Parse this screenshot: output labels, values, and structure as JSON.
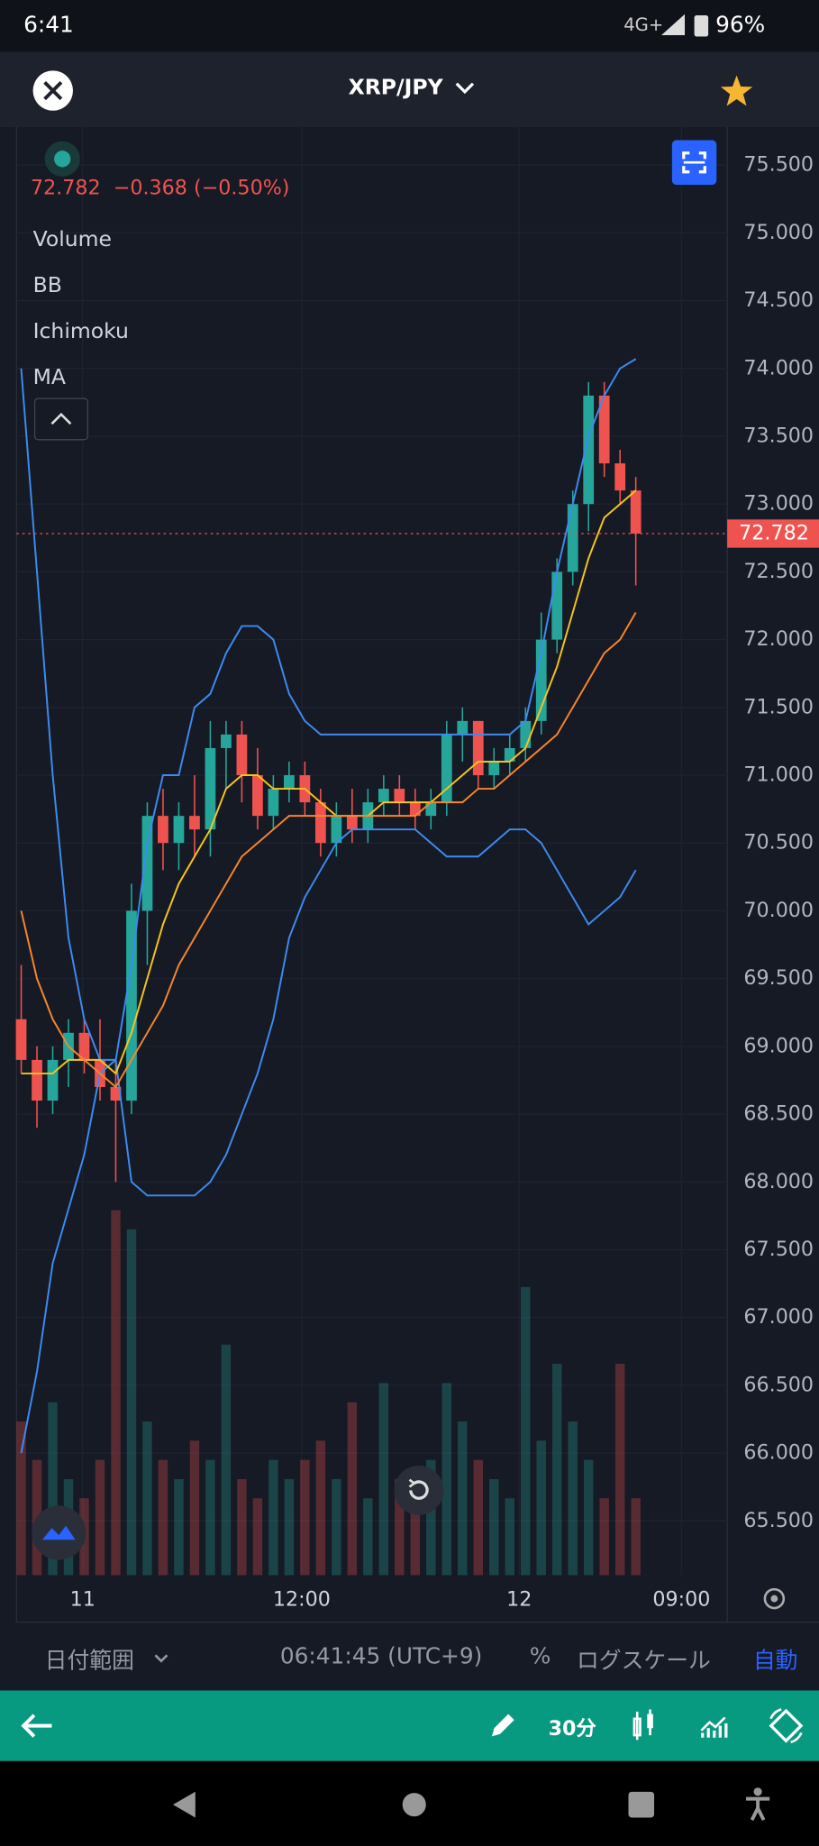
{
  "status_bar": {
    "time": "6:41",
    "network": "4G+",
    "battery": "96%"
  },
  "header": {
    "symbol": "XRP/JPY"
  },
  "chart_data": {
    "type": "candlestick",
    "change": "−0.368 (−0.50%)",
    "indicators": [
      "Volume",
      "BB",
      "Ichimoku",
      "MA"
    ],
    "up_color": "#26a69a",
    "down_color": "#ef5350",
    "categories": [
      null,
      null,
      null,
      null,
      null,
      null,
      null,
      null,
      null,
      null,
      null,
      null,
      null,
      null,
      null,
      null,
      null,
      null,
      null,
      null,
      null,
      null,
      null,
      null,
      null,
      null,
      null,
      null,
      null,
      null,
      null,
      null,
      null,
      null,
      null,
      null,
      null,
      null,
      null,
      null
    ],
    "open": [
      69.2,
      68.9,
      68.6,
      68.9,
      69.1,
      68.9,
      68.7,
      68.6,
      70.0,
      70.7,
      70.5,
      70.7,
      70.6,
      71.2,
      71.3,
      71.0,
      70.7,
      70.9,
      71.0,
      70.8,
      70.5,
      70.7,
      70.6,
      70.8,
      70.9,
      70.8,
      70.7,
      70.8,
      71.3,
      71.4,
      71.0,
      71.1,
      71.2,
      71.4,
      72.0,
      72.5,
      73.0,
      73.8,
      73.3,
      73.1
    ],
    "high": [
      69.6,
      69.0,
      69.0,
      69.2,
      69.2,
      69.2,
      68.9,
      70.2,
      70.8,
      70.9,
      70.8,
      71.0,
      71.4,
      71.4,
      71.4,
      71.2,
      71.0,
      71.1,
      71.1,
      70.9,
      70.8,
      70.9,
      70.9,
      71.0,
      71.0,
      70.9,
      70.9,
      71.4,
      71.5,
      71.4,
      71.2,
      71.3,
      71.5,
      72.2,
      72.6,
      73.1,
      73.9,
      73.9,
      73.4,
      73.2
    ],
    "low": [
      68.8,
      68.4,
      68.5,
      68.7,
      68.8,
      68.6,
      68.0,
      68.5,
      69.6,
      70.3,
      70.3,
      70.4,
      70.4,
      70.9,
      70.8,
      70.6,
      70.6,
      70.8,
      70.7,
      70.4,
      70.4,
      70.5,
      70.5,
      70.7,
      70.7,
      70.6,
      70.6,
      70.7,
      71.1,
      70.9,
      70.9,
      71.0,
      71.1,
      71.3,
      71.9,
      72.4,
      72.8,
      73.2,
      73.0,
      72.4
    ],
    "close": [
      68.9,
      68.6,
      68.9,
      69.1,
      68.9,
      68.7,
      68.6,
      70.0,
      70.7,
      70.5,
      70.7,
      70.6,
      71.2,
      71.3,
      71.0,
      70.7,
      70.9,
      71.0,
      70.8,
      70.5,
      70.7,
      70.6,
      70.8,
      70.9,
      70.8,
      70.7,
      70.8,
      71.3,
      71.4,
      71.0,
      71.1,
      71.2,
      71.4,
      72.0,
      72.5,
      73.0,
      73.8,
      73.3,
      73.1,
      72.782
    ],
    "volume": [
      40,
      30,
      45,
      25,
      20,
      30,
      95,
      90,
      40,
      30,
      25,
      35,
      30,
      60,
      25,
      20,
      30,
      25,
      30,
      35,
      25,
      45,
      20,
      50,
      25,
      20,
      30,
      50,
      40,
      30,
      25,
      20,
      75,
      35,
      55,
      40,
      30,
      20,
      55,
      20
    ],
    "series": [
      {
        "color": "#3d8bf0",
        "values": [
          74.0,
          72.5,
          71.0,
          69.8,
          69.2,
          68.9,
          68.9,
          69.6,
          70.5,
          71.0,
          71.0,
          71.5,
          71.6,
          71.9,
          72.1,
          72.1,
          72.0,
          71.6,
          71.4,
          71.3,
          71.3,
          71.3,
          71.3,
          71.3,
          71.3,
          71.3,
          71.3,
          71.3,
          71.3,
          71.3,
          71.3,
          71.3,
          71.4,
          71.9,
          72.5,
          73.0,
          73.5,
          73.8,
          74.0,
          74.07
        ]
      },
      {
        "color": "#3d8bf0",
        "values": [
          66.0,
          66.6,
          67.4,
          67.8,
          68.2,
          68.8,
          68.9,
          68.0,
          67.9,
          67.9,
          67.9,
          67.9,
          68.0,
          68.2,
          68.5,
          68.8,
          69.2,
          69.8,
          70.1,
          70.3,
          70.5,
          70.6,
          70.6,
          70.6,
          70.6,
          70.6,
          70.5,
          70.4,
          70.4,
          70.4,
          70.5,
          70.6,
          70.6,
          70.5,
          70.3,
          70.1,
          69.9,
          70.0,
          70.1,
          70.3
        ]
      },
      {
        "color": "#f5c518",
        "values": [
          68.8,
          68.8,
          68.8,
          68.9,
          68.9,
          68.9,
          68.8,
          69.1,
          69.5,
          69.9,
          70.2,
          70.4,
          70.6,
          70.9,
          71.0,
          71.0,
          70.9,
          70.9,
          70.9,
          70.8,
          70.7,
          70.7,
          70.7,
          70.8,
          70.8,
          70.8,
          70.8,
          70.9,
          71.0,
          71.1,
          71.1,
          71.1,
          71.2,
          71.5,
          71.8,
          72.2,
          72.6,
          72.9,
          73.0,
          73.1
        ]
      },
      {
        "color": "#f7862a",
        "values": [
          70.0,
          69.5,
          69.2,
          69.0,
          68.9,
          68.8,
          68.7,
          68.9,
          69.1,
          69.3,
          69.6,
          69.8,
          70.0,
          70.2,
          70.4,
          70.5,
          70.6,
          70.7,
          70.7,
          70.7,
          70.7,
          70.7,
          70.7,
          70.7,
          70.7,
          70.7,
          70.8,
          70.8,
          70.8,
          70.9,
          70.9,
          71.0,
          71.1,
          71.2,
          71.3,
          71.5,
          71.7,
          71.9,
          72.0,
          72.2
        ]
      }
    ],
    "ylim": [
      65.1,
      75.78
    ],
    "yticks": [
      {
        "value": 65.5,
        "label": "65.500"
      },
      {
        "value": 66,
        "label": "66.000"
      },
      {
        "value": 66.5,
        "label": "66.500"
      },
      {
        "value": 67,
        "label": "67.000"
      },
      {
        "value": 67.5,
        "label": "67.500"
      },
      {
        "value": 68,
        "label": "68.000"
      },
      {
        "value": 68.5,
        "label": "68.500"
      },
      {
        "value": 69,
        "label": "69.000"
      },
      {
        "value": 69.5,
        "label": "69.500"
      },
      {
        "value": 70,
        "label": "70.000"
      },
      {
        "value": 70.5,
        "label": "70.500"
      },
      {
        "value": 71,
        "label": "71.000"
      },
      {
        "value": 71.5,
        "label": "71.500"
      },
      {
        "value": 72,
        "label": "72.000"
      },
      {
        "value": 72.5,
        "label": "72.500"
      },
      {
        "value": 73,
        "label": "73.000"
      },
      {
        "value": 73.5,
        "label": "73.500"
      },
      {
        "value": 74,
        "label": "74.000"
      },
      {
        "value": 74.5,
        "label": "74.500"
      },
      {
        "value": 75,
        "label": "75.000"
      },
      {
        "value": 75.5,
        "label": "75.500"
      }
    ],
    "xlim": [
      -0.3,
      44.8
    ],
    "xticks": [
      {
        "value": 3.9,
        "label": "11"
      },
      {
        "value": 17.8,
        "label": "12:00"
      },
      {
        "value": 31.6,
        "label": "12"
      },
      {
        "value": 41.9,
        "label": "09:00"
      }
    ],
    "grid": true
  },
  "footer": {
    "date_range": "日付範囲",
    "clock": "06:41:45 (UTC+9)",
    "percent": "%",
    "log_scale": "ログスケール",
    "auto": "自動"
  },
  "toolbar": {
    "interval": "30分"
  }
}
